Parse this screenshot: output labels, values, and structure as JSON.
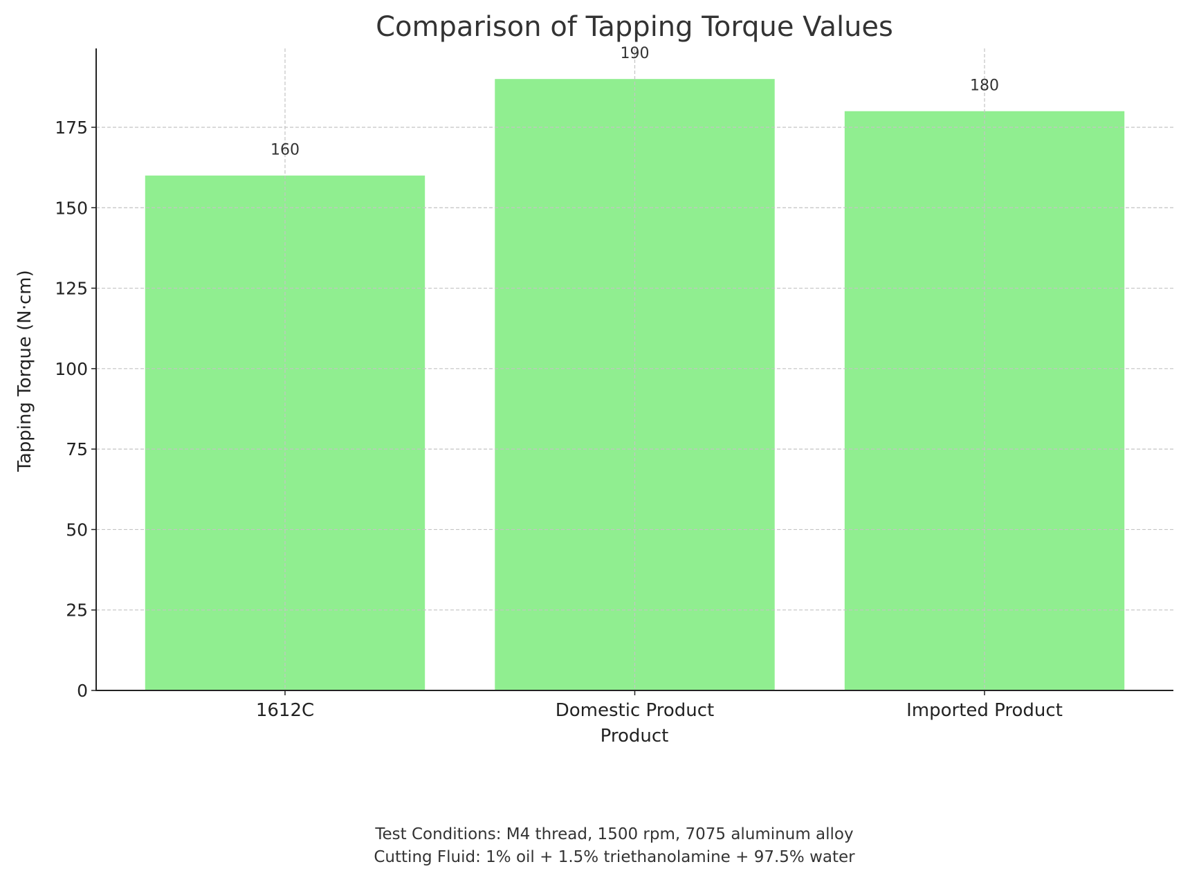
{
  "chart_data": {
    "type": "bar",
    "title": "Comparison of Tapping Torque Values",
    "xlabel": "Product",
    "ylabel": "Tapping Torque (N·cm)",
    "categories": [
      "1612C",
      "Domestic Product",
      "Imported Product"
    ],
    "values": [
      160,
      190,
      180
    ],
    "data_labels": [
      "160",
      "190",
      "180"
    ],
    "ylim": [
      0,
      199.5
    ],
    "yticks": [
      0,
      25,
      50,
      75,
      100,
      125,
      150,
      175
    ],
    "ytick_labels": [
      "0",
      "25",
      "50",
      "75",
      "100",
      "125",
      "150",
      "175"
    ],
    "grid": true,
    "bar_color": "#90ee90",
    "footnote": [
      "Test Conditions: M4 thread, 1500 rpm, 7075 aluminum alloy",
      "Cutting Fluid: 1% oil + 1.5% triethanolamine + 97.5% water"
    ]
  }
}
